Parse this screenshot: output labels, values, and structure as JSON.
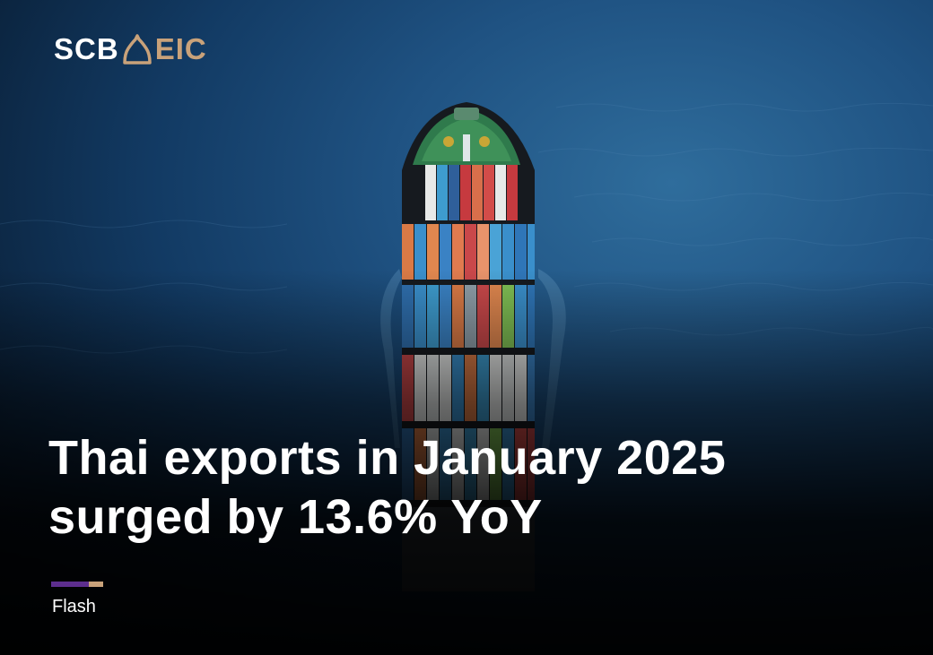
{
  "brand": {
    "left": "SCB",
    "right": "EIC",
    "accent_color": "#c9a27a",
    "secondary_color": "#5d2e8e"
  },
  "headline": "Thai exports in January 2025\nsurged by 13.6% YoY",
  "category": "Flash",
  "icons": {
    "logo_mark": "roof-outline-icon"
  },
  "image": {
    "subject": "container-ship"
  }
}
